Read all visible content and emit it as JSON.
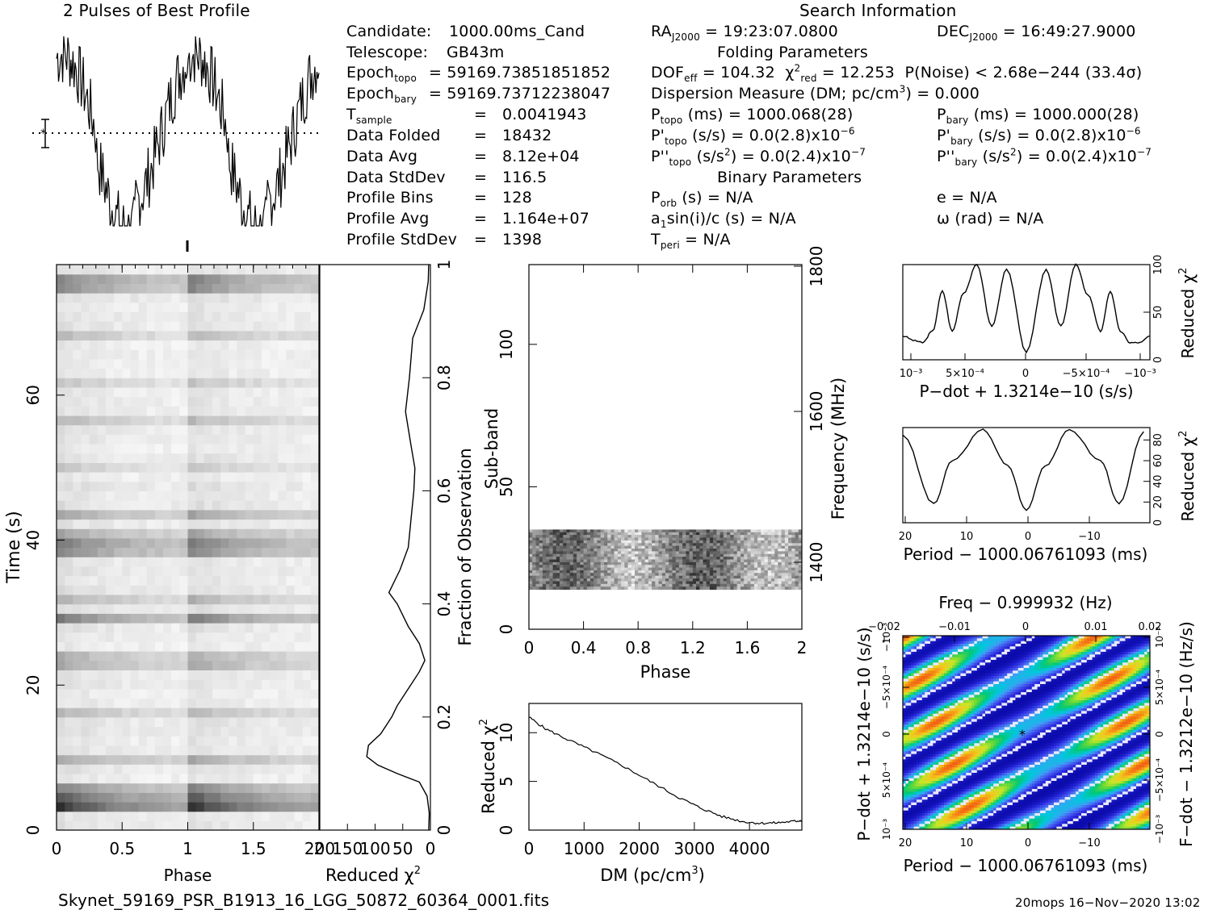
{
  "footer": {
    "filename": "Skynet_59169_PSR_B1913_16_LGG_50872_60364_0001.fits",
    "stamp": "20mops 16−Nov−2020 13:02"
  },
  "headings": {
    "profile": "2 Pulses of Best Profile",
    "search": "Search Information",
    "folding": "Folding Parameters",
    "binary": "Binary Parameters"
  },
  "candidate_info": [
    {
      "label": "Candidate:",
      "value": "1000.00ms_Cand"
    },
    {
      "label": "Telescope:",
      "value": "GB43m"
    },
    {
      "label": "Epoch",
      "sub": "topo",
      "value": "= 59169.73851851852"
    },
    {
      "label": "Epoch",
      "sub": "bary",
      "value": "= 59169.73712238047"
    },
    {
      "label": "T",
      "sub": "sample",
      "value": "0.0041943"
    },
    {
      "label": "Data Folded",
      "value": "18432"
    },
    {
      "label": "Data Avg",
      "value": "8.12e+04"
    },
    {
      "label": "Data StdDev",
      "value": "116.5"
    },
    {
      "label": "Profile Bins",
      "value": "128"
    },
    {
      "label": "Profile Avg",
      "value": "1.164e+07"
    },
    {
      "label": "Profile StdDev",
      "value": "1398"
    }
  ],
  "search_info": {
    "ra_label": "RA",
    "ra_sub": "J2000",
    "ra_value": "= 19:23:07.0800",
    "dec_label": "DEC",
    "dec_sub": "J2000",
    "dec_value": "= 16:49:27.9000",
    "dof_label": "DOF",
    "dof_sub": "eff",
    "dof_value": "= 104.32",
    "chi_label": "χ",
    "chi_sup": "2",
    "chi_sub": "red",
    "chi_value": "= 12.253",
    "pnoise": "P(Noise) < 2.68e−244   (33.4σ)",
    "dm_label": "Dispersion Measure (DM; pc/cm",
    "dm_sup": "3",
    "dm_value": ") = 0.000",
    "ptopo_label": "P",
    "ptopo_sub": "topo",
    "ptopo_value": "(ms) =  1000.068(28)",
    "pbary_label": "P",
    "pbary_sub": "bary",
    "pbary_value": "(ms) =  1000.000(28)",
    "pdtopo_label": "P'",
    "pdtopo_sub": "topo",
    "pdtopo_value": "(s/s) = 0.0(2.8)x10",
    "pdtopo_exp": "−6",
    "pdbary_label": "P'",
    "pdbary_sub": "bary",
    "pdbary_value": "(s/s) = 0.0(2.8)x10",
    "pdbary_exp": "−6",
    "pddtopo_label": "P''",
    "pddtopo_sub": "topo",
    "pddtopo_value": "(s/s",
    "pddtopo_sup": "2",
    "pddtopo_tail": ") = 0.0(2.4)x10",
    "pddtopo_exp": "−7",
    "pddbary_label": "P''",
    "pddbary_sub": "bary",
    "pddbary_value": "(s/s",
    "pddbary_sup": "2",
    "pddbary_tail": ") = 0.0(2.4)x10",
    "pddbary_exp": "−7",
    "porb_label": "P",
    "porb_sub": "orb",
    "porb_value": "(s) = N/A",
    "e_value": "e = N/A",
    "a1_label": "a",
    "a1_sub": "1",
    "a1_value": "sin(i)/c (s) = N/A",
    "omega_value": "ω (rad) = N/A",
    "tperi_label": "T",
    "tperi_sub": "peri",
    "tperi_value": "= N/A"
  },
  "chart_data": [
    {
      "id": "profile",
      "type": "line",
      "title": "2 Pulses of Best Profile",
      "x_range": [
        0,
        2
      ],
      "note": "two periods of the folded pulse profile; dotted line at mean with error bar"
    },
    {
      "id": "time_phase",
      "type": "heatmap",
      "xlabel": "Phase",
      "ylabel": "Time (s)",
      "x_ticks": [
        "0",
        "0.5",
        "1",
        "1.5",
        "2"
      ],
      "y_ticks": [
        "0",
        "20",
        "40",
        "60"
      ],
      "x_range": [
        0,
        2
      ],
      "y_range": [
        0,
        78
      ],
      "colormap": "grayscale"
    },
    {
      "id": "time_chi2",
      "type": "line",
      "xlabel": "Reduced χ",
      "xlabel_sup": "2",
      "x_ticks": [
        "200",
        "150",
        "100",
        "50",
        "0"
      ],
      "x_range": [
        200,
        0
      ],
      "right_axis_label": "Fraction of Observation",
      "right_ticks": [
        "0",
        "0.2",
        "0.4",
        "0.6",
        "0.8",
        "1"
      ],
      "points": [
        [
          3,
          0.0
        ],
        [
          2,
          0.03
        ],
        [
          6,
          0.06
        ],
        [
          20,
          0.085
        ],
        [
          60,
          0.1
        ],
        [
          95,
          0.115
        ],
        [
          115,
          0.13
        ],
        [
          112,
          0.15
        ],
        [
          90,
          0.17
        ],
        [
          70,
          0.2
        ],
        [
          60,
          0.22
        ],
        [
          40,
          0.25
        ],
        [
          20,
          0.28
        ],
        [
          10,
          0.3
        ],
        [
          20,
          0.33
        ],
        [
          40,
          0.36
        ],
        [
          60,
          0.4
        ],
        [
          75,
          0.42
        ],
        [
          55,
          0.46
        ],
        [
          40,
          0.5
        ],
        [
          35,
          0.55
        ],
        [
          30,
          0.6
        ],
        [
          28,
          0.64
        ],
        [
          35,
          0.68
        ],
        [
          45,
          0.74
        ],
        [
          38,
          0.8
        ],
        [
          32,
          0.87
        ],
        [
          12,
          0.92
        ],
        [
          4,
          0.97
        ],
        [
          3,
          1.0
        ]
      ]
    },
    {
      "id": "subband_phase",
      "type": "heatmap",
      "xlabel": "Phase",
      "ylabel": "Sub-band",
      "x_ticks": [
        "0",
        "0.4",
        "0.8",
        "1.2",
        "1.6",
        "2"
      ],
      "y_ticks": [
        "0",
        "50",
        "100"
      ],
      "right_axis_label": "Frequency (MHz)",
      "right_ticks": [
        "1400",
        "1600",
        "1800"
      ],
      "x_range": [
        0,
        2
      ],
      "y_range": [
        0,
        128
      ],
      "active_band": [
        14,
        35
      ],
      "colormap": "grayscale"
    },
    {
      "id": "dm_chi2",
      "type": "line",
      "xlabel": "DM (pc/cm",
      "xlabel_sup": "3",
      "xlabel_tail": ")",
      "ylabel": "Reduced χ",
      "ylabel_sup": "2",
      "x_ticks": [
        "0",
        "1000",
        "2000",
        "3000",
        "4000"
      ],
      "y_ticks": [
        "0",
        "5",
        "10"
      ],
      "x_range": [
        0,
        4950
      ],
      "y_range": [
        0,
        13
      ],
      "points": [
        [
          0,
          11.6
        ],
        [
          300,
          10.4
        ],
        [
          700,
          9.3
        ],
        [
          1200,
          8.0
        ],
        [
          1700,
          6.6
        ],
        [
          2200,
          5.0
        ],
        [
          2700,
          3.4
        ],
        [
          3100,
          2.3
        ],
        [
          3500,
          1.4
        ],
        [
          3900,
          0.85
        ],
        [
          4200,
          0.7
        ],
        [
          4500,
          0.75
        ],
        [
          4800,
          0.9
        ],
        [
          4950,
          1.0
        ]
      ]
    },
    {
      "id": "pdot_chi2",
      "type": "line",
      "xlabel": "P−dot + 1.3214e−10 (s/s)",
      "ylabel": "Reduced χ",
      "ylabel_sup": "2",
      "x_ticks": [
        "10⁻³",
        "5×10⁻⁴",
        "0",
        "−5×10⁻⁴",
        "−10⁻³"
      ],
      "y_ticks": [
        "0",
        "50",
        "100"
      ],
      "y_range": [
        0,
        100
      ],
      "points": [
        [
          0,
          25
        ],
        [
          0.05,
          20
        ],
        [
          0.08,
          18
        ],
        [
          0.12,
          30
        ],
        [
          0.16,
          72
        ],
        [
          0.2,
          30
        ],
        [
          0.245,
          70
        ],
        [
          0.3,
          100
        ],
        [
          0.36,
          35
        ],
        [
          0.42,
          95
        ],
        [
          0.5,
          8
        ],
        [
          0.58,
          95
        ],
        [
          0.64,
          35
        ],
        [
          0.7,
          100
        ],
        [
          0.75,
          68
        ],
        [
          0.8,
          30
        ],
        [
          0.84,
          72
        ],
        [
          0.88,
          30
        ],
        [
          0.92,
          18
        ],
        [
          0.96,
          18
        ],
        [
          1.0,
          25
        ]
      ]
    },
    {
      "id": "period_chi2",
      "type": "line",
      "xlabel": "Period − 1000.06761093 (ms)",
      "ylabel": "Reduced χ",
      "ylabel_sup": "2",
      "x_ticks": [
        "20",
        "10",
        "0",
        "−10"
      ],
      "y_ticks": [
        "0",
        "20",
        "40",
        "60",
        "80"
      ],
      "y_range": [
        0,
        92
      ],
      "points": [
        [
          20,
          85
        ],
        [
          15,
          18
        ],
        [
          12,
          60
        ],
        [
          7,
          90
        ],
        [
          3,
          55
        ],
        [
          0,
          12
        ],
        [
          -3,
          55
        ],
        [
          -7,
          90
        ],
        [
          -12,
          60
        ],
        [
          -15,
          18
        ],
        [
          -19,
          88
        ]
      ]
    },
    {
      "id": "p_pdot_map",
      "type": "heatmap",
      "title": "Freq − 0.999932 (Hz)",
      "xlabel": "Period − 1000.06761093 (ms)",
      "ylabel": "P−dot + 1.3214e−10 (s/s)",
      "right_axis_label": "F−dot − 1.3212e−10 (Hz/s)",
      "bottom_ticks": [
        "20",
        "10",
        "0",
        "−10"
      ],
      "top_ticks": [
        "−0.02",
        "−0.01",
        "0",
        "0.01",
        "0.02"
      ],
      "left_ticks": [
        "10⁻³",
        "5×10⁻⁴",
        "0",
        "−5×10⁻⁴",
        "−10⁻³"
      ],
      "right_ticks": [
        "−10⁻³",
        "−5×10⁻⁴",
        "0",
        "5×10⁻⁴",
        "10⁻³"
      ],
      "colormap": "rainbow"
    }
  ]
}
